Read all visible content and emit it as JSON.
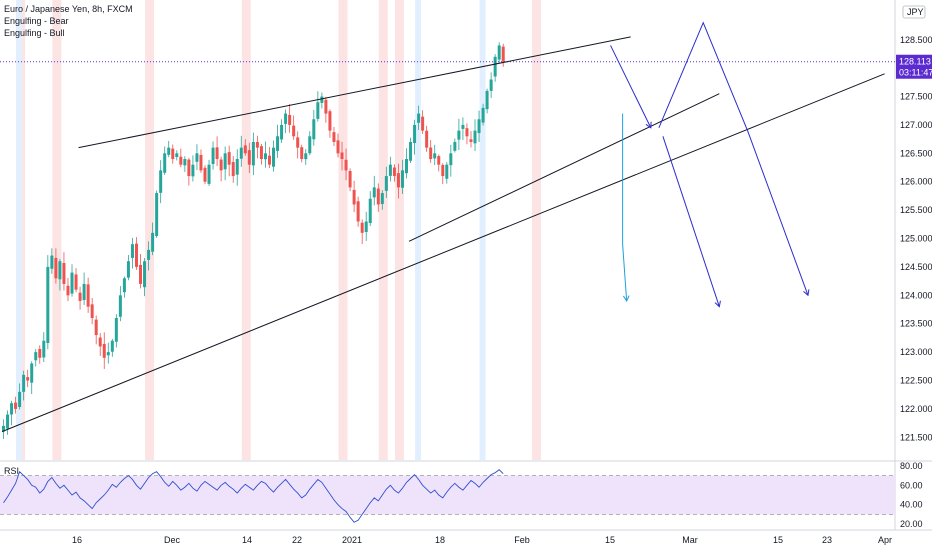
{
  "header": {
    "title": "Euro / Japanese Yen, 8h, FXCM",
    "legend": [
      "Engulfing - Bear",
      "Engulfing - Bull"
    ]
  },
  "price_axis": {
    "currency": "JPY",
    "last_price": "128.113",
    "countdown": "03:11:47"
  },
  "colors": {
    "bull": "#26a69a",
    "bear": "#ef5350",
    "price_tag": "#5b2bd0",
    "drawing": "#2c2ccf",
    "projection": "#1e9fe0",
    "trendline": "#131722",
    "rsi_line": "#2f4fd0",
    "rsi_band": "#efe3fb",
    "bear_band": "#fde4e4",
    "bull_band": "#e2efff"
  },
  "chart_data": [
    {
      "type": "candlestick",
      "title": "Euro / Japanese Yen, 8h, FXCM",
      "y_ticks": [
        121.5,
        122.0,
        122.5,
        123.0,
        123.5,
        124.0,
        124.5,
        125.0,
        125.5,
        126.0,
        126.5,
        127.0,
        127.5,
        128.0,
        128.5
      ],
      "y_tick_labels": [
        "121.500",
        "122.000",
        "122.500",
        "123.000",
        "123.500",
        "124.000",
        "124.500",
        "125.000",
        "125.500",
        "126.000",
        "126.500",
        "127.000",
        "127.500",
        "128.000",
        "128.500"
      ],
      "x_tick_labels": [
        "16",
        "Dec",
        "14",
        "22",
        "2021",
        "18",
        "Feb",
        "15",
        "Mar",
        "15",
        "23",
        "Apr"
      ],
      "ylim": [
        121.1,
        129.2
      ],
      "closes": [
        121.7,
        121.9,
        122.1,
        122.0,
        122.3,
        122.6,
        122.5,
        122.8,
        123.0,
        122.9,
        123.2,
        124.5,
        124.7,
        124.3,
        124.6,
        124.2,
        124.0,
        124.4,
        124.1,
        123.9,
        124.2,
        123.8,
        123.6,
        123.3,
        123.1,
        122.9,
        123.0,
        123.2,
        123.6,
        124.0,
        124.3,
        124.6,
        124.9,
        124.5,
        124.2,
        124.6,
        124.8,
        125.1,
        125.8,
        126.2,
        126.5,
        126.6,
        126.4,
        126.5,
        126.3,
        126.4,
        126.1,
        126.3,
        126.5,
        126.2,
        126.0,
        126.3,
        126.6,
        126.4,
        126.2,
        126.5,
        126.3,
        126.1,
        126.4,
        126.6,
        126.5,
        126.3,
        126.7,
        126.6,
        126.4,
        126.5,
        126.3,
        126.6,
        126.8,
        127.0,
        127.2,
        127.0,
        126.8,
        126.6,
        126.4,
        126.5,
        126.8,
        127.1,
        127.4,
        127.5,
        127.2,
        126.9,
        126.7,
        126.5,
        126.4,
        126.2,
        125.9,
        125.6,
        125.3,
        125.1,
        125.3,
        125.7,
        125.9,
        125.6,
        125.8,
        126.1,
        126.3,
        126.1,
        125.9,
        126.2,
        126.4,
        126.7,
        127.0,
        127.2,
        126.9,
        126.6,
        126.4,
        126.5,
        126.3,
        126.1,
        126.3,
        126.5,
        126.7,
        126.9,
        127.0,
        126.8,
        126.7,
        126.9,
        127.1,
        127.3,
        127.6,
        127.8,
        128.2,
        128.4,
        128.113
      ],
      "trendlines": [
        {
          "name": "rising-wedge-upper",
          "from": [
            19,
            126.6
          ],
          "to": [
            156,
            128.55
          ]
        },
        {
          "name": "rising-wedge-lower",
          "from": [
            101,
            124.95
          ],
          "to": [
            178,
            127.55
          ]
        },
        {
          "name": "long-term-support",
          "from": [
            0,
            121.6
          ],
          "to": [
            219,
            127.9
          ]
        }
      ],
      "projections": [
        {
          "name": "drop-arrow",
          "points": [
            [
              151,
              128.4
            ],
            [
              161,
              126.95
            ]
          ]
        },
        {
          "name": "zigzag-arrow",
          "points": [
            [
              163,
              126.95
            ],
            [
              174,
              128.8
            ],
            [
              185,
              126.9
            ],
            [
              200,
              124.0
            ]
          ]
        },
        {
          "name": "decline-arrow",
          "points": [
            [
              164,
              126.8
            ],
            [
              178,
              123.8
            ]
          ]
        },
        {
          "name": "bounce-projection",
          "points": [
            [
              154,
              127.2
            ],
            [
              154,
              124.9
            ],
            [
              155,
              123.9
            ]
          ]
        }
      ],
      "engulfing_bear_bars": [
        4,
        13,
        36,
        60,
        84,
        94,
        98,
        132
      ],
      "engulfing_bull_bars": [
        4,
        103,
        119
      ]
    },
    {
      "type": "line",
      "title": "RSI",
      "y_ticks": [
        20.0,
        40.0,
        60.0,
        80.0
      ],
      "y_tick_labels": [
        "20.00",
        "40.00",
        "60.00",
        "80.00"
      ],
      "band": [
        30,
        70
      ],
      "ylim": [
        16,
        84
      ],
      "values": [
        42,
        48,
        55,
        62,
        74,
        70,
        66,
        60,
        58,
        52,
        56,
        64,
        68,
        62,
        57,
        60,
        55,
        50,
        53,
        47,
        44,
        40,
        36,
        42,
        46,
        50,
        55,
        61,
        58,
        63,
        67,
        70,
        66,
        60,
        56,
        62,
        68,
        72,
        74,
        69,
        63,
        59,
        64,
        60,
        55,
        58,
        62,
        57,
        54,
        60,
        64,
        61,
        58,
        55,
        60,
        63,
        59,
        56,
        52,
        57,
        61,
        58,
        55,
        60,
        64,
        62,
        57,
        53,
        58,
        62,
        66,
        61,
        56,
        52,
        47,
        50,
        56,
        61,
        66,
        63,
        57,
        51,
        45,
        40,
        36,
        33,
        27,
        22,
        24,
        30,
        36,
        42,
        47,
        44,
        50,
        56,
        60,
        55,
        52,
        57,
        63,
        67,
        71,
        66,
        60,
        56,
        52,
        55,
        50,
        47,
        53,
        58,
        62,
        58,
        55,
        60,
        65,
        62,
        58,
        63,
        67,
        71,
        73,
        76,
        72
      ]
    }
  ]
}
